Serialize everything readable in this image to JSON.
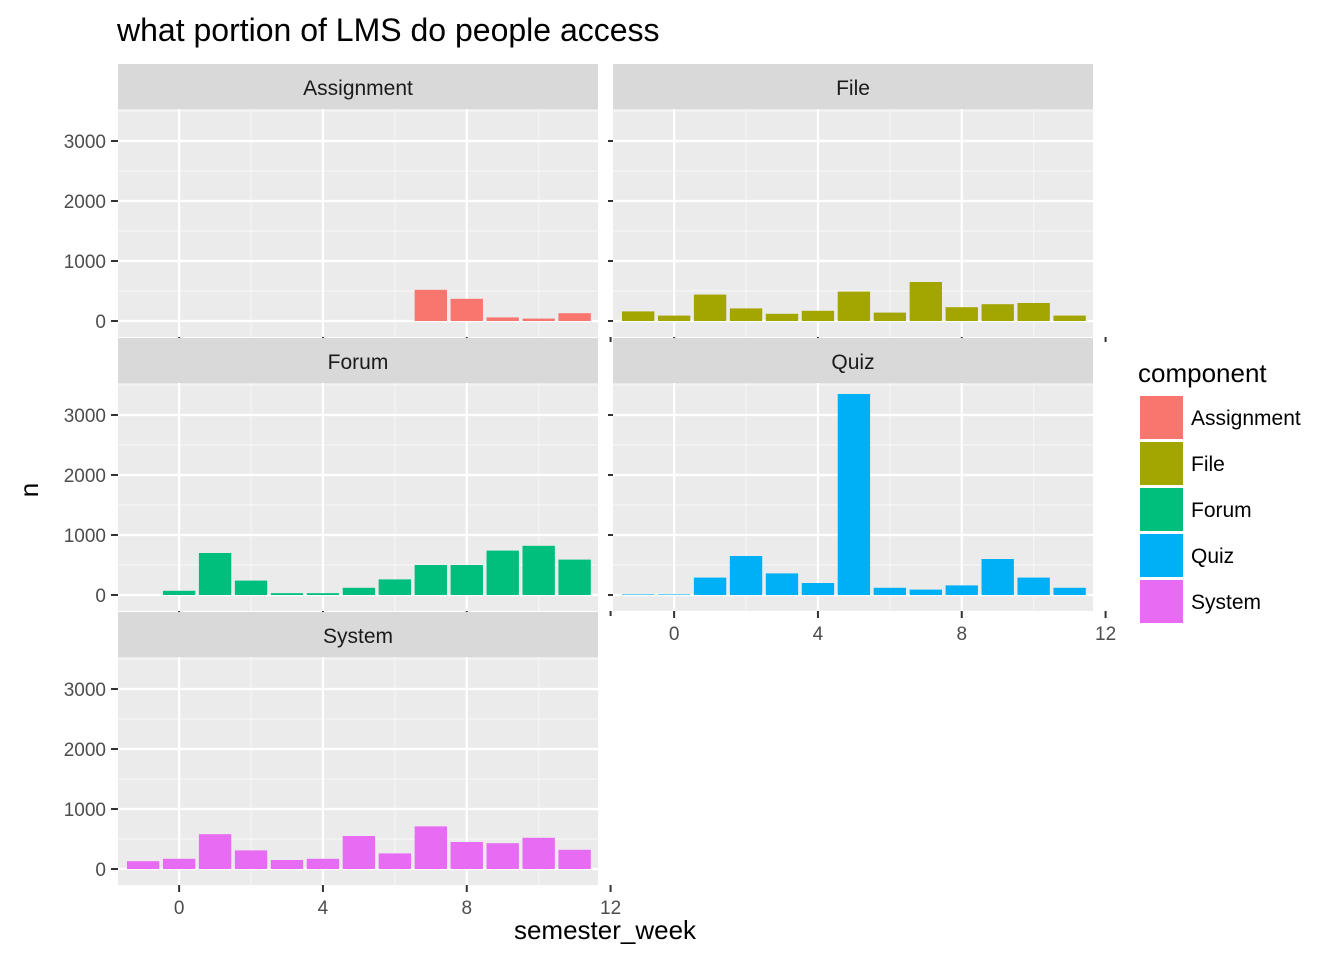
{
  "chart_data": {
    "type": "bar",
    "title": "what portion of LMS do people access",
    "xlabel": "semester_week",
    "ylabel": "n",
    "xlim": [
      -2,
      12
    ],
    "ylim": [
      0,
      3500
    ],
    "x_ticks": [
      0,
      4,
      8,
      12
    ],
    "y_ticks": [
      0,
      1000,
      2000,
      3000
    ],
    "grid": true,
    "facet_by": "component",
    "legend": {
      "title": "component",
      "position": "right"
    },
    "series": [
      {
        "name": "Assignment",
        "color": "#F8766D",
        "x": [
          7,
          8,
          9,
          10,
          11
        ],
        "values": [
          520,
          370,
          60,
          40,
          130
        ]
      },
      {
        "name": "File",
        "color": "#A3A500",
        "x": [
          -1,
          0,
          1,
          2,
          3,
          4,
          5,
          6,
          7,
          8,
          9,
          10,
          11
        ],
        "values": [
          160,
          90,
          440,
          210,
          120,
          170,
          490,
          140,
          650,
          230,
          280,
          300,
          90
        ]
      },
      {
        "name": "Forum",
        "color": "#00BF7D",
        "x": [
          0,
          1,
          2,
          3,
          4,
          5,
          6,
          7,
          8,
          9,
          10,
          11
        ],
        "values": [
          70,
          700,
          240,
          30,
          30,
          120,
          260,
          500,
          500,
          740,
          820,
          590
        ]
      },
      {
        "name": "Quiz",
        "color": "#00B0F6",
        "x": [
          -1,
          0,
          1,
          2,
          3,
          4,
          5,
          6,
          7,
          8,
          9,
          10,
          11
        ],
        "values": [
          10,
          10,
          290,
          650,
          360,
          200,
          3350,
          120,
          90,
          160,
          600,
          290,
          120
        ]
      },
      {
        "name": "System",
        "color": "#E76BF3",
        "x": [
          -1,
          0,
          1,
          2,
          3,
          4,
          5,
          6,
          7,
          8,
          9,
          10,
          11
        ],
        "values": [
          130,
          170,
          580,
          310,
          150,
          170,
          550,
          260,
          710,
          450,
          430,
          520,
          320
        ]
      }
    ]
  }
}
